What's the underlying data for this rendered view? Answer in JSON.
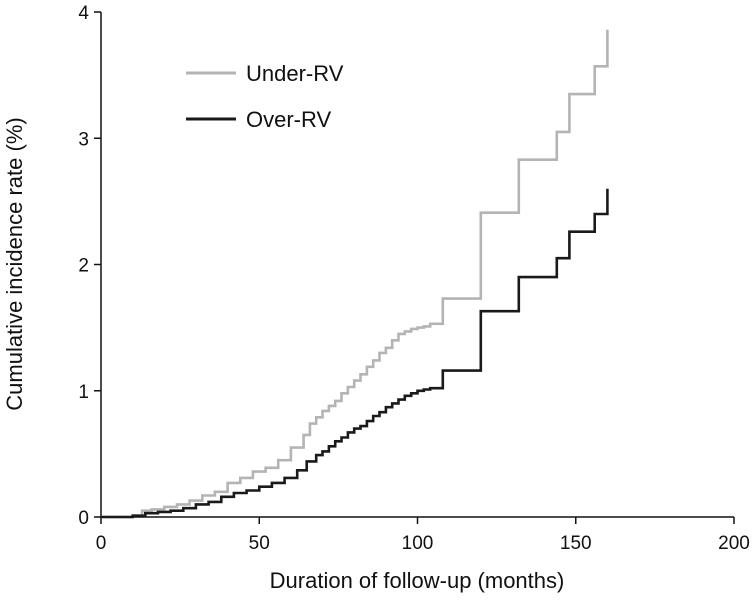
{
  "chart_data": {
    "type": "line",
    "step": true,
    "title": "",
    "xlabel": "Duration of follow-up (months)",
    "ylabel": "Cumulative incidence rate (%)",
    "xlim": [
      0,
      200
    ],
    "ylim": [
      0,
      4
    ],
    "xticks": [
      0,
      50,
      100,
      150,
      200
    ],
    "yticks": [
      0,
      1,
      2,
      3,
      4
    ],
    "grid": false,
    "legend_position": "top-left",
    "series": [
      {
        "name": "Under-RV",
        "color": "#b4b4b4",
        "x": [
          0,
          10,
          13,
          16,
          20,
          24,
          28,
          32,
          36,
          40,
          44,
          48,
          52,
          56,
          60,
          64,
          66,
          68,
          70,
          72,
          74,
          76,
          78,
          80,
          82,
          84,
          86,
          88,
          90,
          92,
          94,
          96,
          98,
          100,
          102,
          104,
          108,
          120,
          132,
          144,
          148,
          156,
          160
        ],
        "y": [
          0,
          0.01,
          0.05,
          0.06,
          0.08,
          0.1,
          0.13,
          0.17,
          0.2,
          0.27,
          0.31,
          0.36,
          0.39,
          0.45,
          0.55,
          0.65,
          0.74,
          0.79,
          0.84,
          0.88,
          0.92,
          0.98,
          1.03,
          1.08,
          1.13,
          1.19,
          1.24,
          1.3,
          1.34,
          1.4,
          1.45,
          1.47,
          1.49,
          1.5,
          1.51,
          1.53,
          1.73,
          2.41,
          2.83,
          3.05,
          3.35,
          3.57,
          3.86
        ]
      },
      {
        "name": "Over-RV",
        "color": "#1a1a1a",
        "x": [
          0,
          10,
          14,
          18,
          22,
          26,
          30,
          34,
          38,
          42,
          46,
          50,
          54,
          58,
          62,
          65,
          68,
          70,
          72,
          74,
          76,
          78,
          80,
          82,
          84,
          86,
          88,
          90,
          92,
          94,
          96,
          98,
          100,
          102,
          104,
          108,
          120,
          132,
          144,
          148,
          156,
          160
        ],
        "y": [
          0,
          0.01,
          0.03,
          0.04,
          0.05,
          0.07,
          0.1,
          0.12,
          0.16,
          0.19,
          0.21,
          0.24,
          0.27,
          0.31,
          0.37,
          0.44,
          0.49,
          0.52,
          0.56,
          0.6,
          0.63,
          0.67,
          0.7,
          0.72,
          0.76,
          0.8,
          0.83,
          0.87,
          0.9,
          0.93,
          0.96,
          0.98,
          1.0,
          1.01,
          1.02,
          1.16,
          1.63,
          1.9,
          2.05,
          2.26,
          2.4,
          2.6
        ]
      }
    ]
  }
}
